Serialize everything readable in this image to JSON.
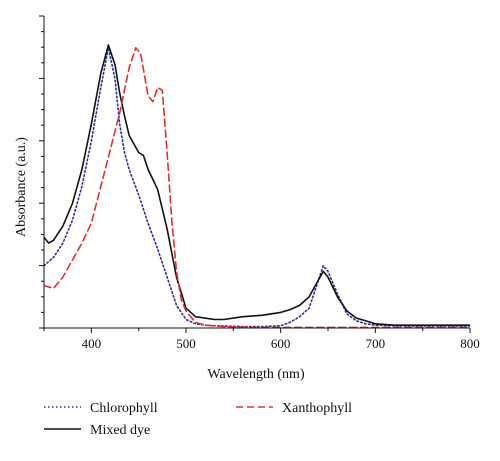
{
  "chart_data": {
    "type": "line",
    "title": "",
    "xlabel": "Wavelength (nm)",
    "ylabel": "Absorbance (a.u.)",
    "xlim": [
      350,
      800
    ],
    "ylim": [
      0,
      1.0
    ],
    "x_ticks": [
      400,
      500,
      600,
      700,
      800
    ],
    "x_tick_labels": [
      "400",
      "500",
      "600",
      "700",
      "800"
    ],
    "y_tick_labels_shown": false,
    "grid": false,
    "legend_position": "bottom",
    "series": [
      {
        "name": "Chlorophyll",
        "color": "#2a2aa8",
        "style": "dotted",
        "x": [
          350,
          360,
          370,
          380,
          390,
          400,
          410,
          418,
          425,
          430,
          435,
          440,
          450,
          460,
          470,
          480,
          490,
          500,
          510,
          520,
          530,
          540,
          560,
          580,
          600,
          610,
          620,
          630,
          640,
          645,
          650,
          660,
          670,
          680,
          690,
          700,
          720,
          750,
          800
        ],
        "y": [
          0.22,
          0.25,
          0.3,
          0.38,
          0.5,
          0.66,
          0.85,
          0.99,
          0.88,
          0.72,
          0.62,
          0.56,
          0.47,
          0.37,
          0.28,
          0.18,
          0.08,
          0.03,
          0.015,
          0.01,
          0.008,
          0.007,
          0.005,
          0.005,
          0.008,
          0.02,
          0.04,
          0.07,
          0.17,
          0.22,
          0.2,
          0.12,
          0.05,
          0.025,
          0.015,
          0.01,
          0.008,
          0.007,
          0.007
        ]
      },
      {
        "name": "Mixed dye",
        "color": "#111111",
        "style": "solid",
        "x": [
          350,
          355,
          360,
          370,
          380,
          390,
          400,
          410,
          418,
          425,
          430,
          435,
          440,
          450,
          455,
          460,
          470,
          480,
          490,
          500,
          510,
          520,
          530,
          540,
          560,
          580,
          600,
          610,
          620,
          630,
          640,
          645,
          650,
          660,
          670,
          680,
          690,
          700,
          720,
          750,
          800
        ],
        "y": [
          0.32,
          0.3,
          0.31,
          0.36,
          0.44,
          0.56,
          0.72,
          0.9,
          1.0,
          0.93,
          0.83,
          0.75,
          0.68,
          0.62,
          0.61,
          0.56,
          0.49,
          0.35,
          0.18,
          0.07,
          0.04,
          0.035,
          0.03,
          0.03,
          0.04,
          0.045,
          0.055,
          0.065,
          0.08,
          0.11,
          0.17,
          0.2,
          0.18,
          0.11,
          0.06,
          0.035,
          0.025,
          0.015,
          0.01,
          0.01,
          0.01
        ]
      },
      {
        "name": "Xanthophyll",
        "color": "#e03030",
        "style": "dashed",
        "x": [
          350,
          360,
          370,
          380,
          390,
          400,
          410,
          420,
          430,
          440,
          447,
          452,
          460,
          465,
          470,
          475,
          480,
          485,
          490,
          495,
          500,
          505,
          510,
          520,
          540,
          560,
          600,
          650,
          700,
          800
        ],
        "y": [
          0.15,
          0.14,
          0.18,
          0.24,
          0.3,
          0.37,
          0.5,
          0.63,
          0.76,
          0.92,
          0.99,
          0.97,
          0.82,
          0.8,
          0.85,
          0.84,
          0.62,
          0.38,
          0.2,
          0.1,
          0.06,
          0.04,
          0.02,
          0.01,
          0.005,
          0.003,
          0.002,
          0.002,
          0.002,
          0.002
        ]
      }
    ]
  }
}
